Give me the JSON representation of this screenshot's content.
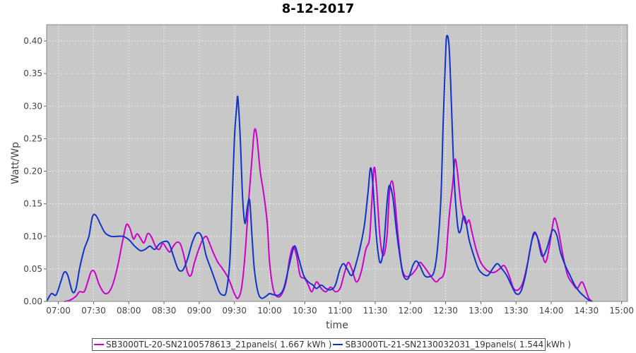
{
  "chart_data": {
    "type": "line",
    "title": "8-12-2017",
    "xlabel": "time",
    "ylabel": "Watt/Wp",
    "xlim": [
      "06:50",
      "15:05"
    ],
    "ylim": [
      0,
      0.425
    ],
    "yticks": [
      0.0,
      0.05,
      0.1,
      0.15,
      0.2,
      0.25,
      0.3,
      0.35,
      0.4
    ],
    "ytick_labels": [
      "0.00",
      "0.05",
      "0.10",
      "0.15",
      "0.20",
      "0.25",
      "0.30",
      "0.35",
      "0.40"
    ],
    "xticks": [
      "07:00",
      "07:30",
      "08:00",
      "08:30",
      "09:00",
      "09:30",
      "10:00",
      "10:30",
      "11:00",
      "11:30",
      "12:00",
      "12:30",
      "13:00",
      "13:30",
      "14:00",
      "14:30",
      "15:00"
    ],
    "grid": true,
    "legend_position": "bottom",
    "series": [
      {
        "name": "SB3000TL-20-SN2100578613_21panels( 1.667 kWh )",
        "color": "#cc00cc",
        "points": [
          [
            "07:05",
            0.0
          ],
          [
            "07:10",
            0.002
          ],
          [
            "07:15",
            0.008
          ],
          [
            "07:18",
            0.015
          ],
          [
            "07:22",
            0.015
          ],
          [
            "07:25",
            0.03
          ],
          [
            "07:28",
            0.046
          ],
          [
            "07:31",
            0.045
          ],
          [
            "07:35",
            0.025
          ],
          [
            "07:40",
            0.012
          ],
          [
            "07:45",
            0.02
          ],
          [
            "07:50",
            0.05
          ],
          [
            "07:55",
            0.095
          ],
          [
            "07:58",
            0.118
          ],
          [
            "08:01",
            0.112
          ],
          [
            "08:04",
            0.096
          ],
          [
            "08:07",
            0.104
          ],
          [
            "08:10",
            0.097
          ],
          [
            "08:13",
            0.09
          ],
          [
            "08:16",
            0.104
          ],
          [
            "08:19",
            0.1
          ],
          [
            "08:23",
            0.084
          ],
          [
            "08:26",
            0.08
          ],
          [
            "08:29",
            0.089
          ],
          [
            "08:32",
            0.082
          ],
          [
            "08:35",
            0.076
          ],
          [
            "08:38",
            0.085
          ],
          [
            "08:41",
            0.091
          ],
          [
            "08:44",
            0.088
          ],
          [
            "08:47",
            0.07
          ],
          [
            "08:50",
            0.045
          ],
          [
            "08:53",
            0.04
          ],
          [
            "08:56",
            0.06
          ],
          [
            "09:00",
            0.082
          ],
          [
            "09:03",
            0.095
          ],
          [
            "09:06",
            0.1
          ],
          [
            "09:08",
            0.093
          ],
          [
            "09:12",
            0.075
          ],
          [
            "09:16",
            0.06
          ],
          [
            "09:20",
            0.05
          ],
          [
            "09:25",
            0.035
          ],
          [
            "09:30",
            0.012
          ],
          [
            "09:33",
            0.005
          ],
          [
            "09:36",
            0.02
          ],
          [
            "09:39",
            0.07
          ],
          [
            "09:42",
            0.15
          ],
          [
            "09:45",
            0.22
          ],
          [
            "09:47",
            0.262
          ],
          [
            "09:49",
            0.255
          ],
          [
            "09:52",
            0.2
          ],
          [
            "09:55",
            0.165
          ],
          [
            "09:58",
            0.12
          ],
          [
            "10:00",
            0.06
          ],
          [
            "10:03",
            0.02
          ],
          [
            "10:06",
            0.008
          ],
          [
            "10:10",
            0.01
          ],
          [
            "10:14",
            0.03
          ],
          [
            "10:17",
            0.065
          ],
          [
            "10:20",
            0.084
          ],
          [
            "10:23",
            0.07
          ],
          [
            "10:26",
            0.04
          ],
          [
            "10:30",
            0.035
          ],
          [
            "10:33",
            0.025
          ],
          [
            "10:36",
            0.015
          ],
          [
            "10:40",
            0.03
          ],
          [
            "10:44",
            0.02
          ],
          [
            "10:48",
            0.015
          ],
          [
            "10:52",
            0.022
          ],
          [
            "10:56",
            0.015
          ],
          [
            "11:00",
            0.02
          ],
          [
            "11:04",
            0.045
          ],
          [
            "11:07",
            0.06
          ],
          [
            "11:10",
            0.05
          ],
          [
            "11:14",
            0.03
          ],
          [
            "11:18",
            0.045
          ],
          [
            "11:22",
            0.08
          ],
          [
            "11:25",
            0.095
          ],
          [
            "11:27",
            0.15
          ],
          [
            "11:29",
            0.205
          ],
          [
            "11:31",
            0.18
          ],
          [
            "11:34",
            0.1
          ],
          [
            "11:37",
            0.07
          ],
          [
            "11:40",
            0.1
          ],
          [
            "11:42",
            0.165
          ],
          [
            "11:44",
            0.185
          ],
          [
            "11:46",
            0.17
          ],
          [
            "11:49",
            0.11
          ],
          [
            "11:52",
            0.06
          ],
          [
            "11:55",
            0.04
          ],
          [
            "12:00",
            0.04
          ],
          [
            "12:05",
            0.05
          ],
          [
            "12:08",
            0.06
          ],
          [
            "12:11",
            0.055
          ],
          [
            "12:15",
            0.045
          ],
          [
            "12:19",
            0.035
          ],
          [
            "12:22",
            0.03
          ],
          [
            "12:25",
            0.035
          ],
          [
            "12:28",
            0.04
          ],
          [
            "12:30",
            0.06
          ],
          [
            "12:33",
            0.13
          ],
          [
            "12:36",
            0.18
          ],
          [
            "12:38",
            0.218
          ],
          [
            "12:40",
            0.2
          ],
          [
            "12:43",
            0.15
          ],
          [
            "12:47",
            0.12
          ],
          [
            "12:50",
            0.125
          ],
          [
            "12:52",
            0.11
          ],
          [
            "12:56",
            0.08
          ],
          [
            "13:00",
            0.06
          ],
          [
            "13:04",
            0.05
          ],
          [
            "13:08",
            0.045
          ],
          [
            "13:12",
            0.045
          ],
          [
            "13:16",
            0.05
          ],
          [
            "13:20",
            0.055
          ],
          [
            "13:24",
            0.04
          ],
          [
            "13:28",
            0.02
          ],
          [
            "13:32",
            0.018
          ],
          [
            "13:36",
            0.03
          ],
          [
            "13:40",
            0.06
          ],
          [
            "13:43",
            0.09
          ],
          [
            "13:46",
            0.104
          ],
          [
            "13:49",
            0.095
          ],
          [
            "13:52",
            0.075
          ],
          [
            "13:55",
            0.06
          ],
          [
            "13:58",
            0.08
          ],
          [
            "14:01",
            0.115
          ],
          [
            "14:03",
            0.128
          ],
          [
            "14:06",
            0.11
          ],
          [
            "14:10",
            0.07
          ],
          [
            "14:14",
            0.04
          ],
          [
            "14:18",
            0.028
          ],
          [
            "14:22",
            0.02
          ],
          [
            "14:26",
            0.03
          ],
          [
            "14:29",
            0.02
          ],
          [
            "14:32",
            0.005
          ],
          [
            "14:35",
            0.0
          ]
        ]
      },
      {
        "name": "SB3000TL-21-SN2130032031_19panels( 1.544 kWh )",
        "color": "#1133cc",
        "points": [
          [
            "06:50",
            0.0
          ],
          [
            "06:54",
            0.012
          ],
          [
            "06:58",
            0.01
          ],
          [
            "07:02",
            0.03
          ],
          [
            "07:05",
            0.045
          ],
          [
            "07:08",
            0.04
          ],
          [
            "07:12",
            0.015
          ],
          [
            "07:15",
            0.02
          ],
          [
            "07:18",
            0.05
          ],
          [
            "07:22",
            0.08
          ],
          [
            "07:26",
            0.1
          ],
          [
            "07:29",
            0.13
          ],
          [
            "07:32",
            0.132
          ],
          [
            "07:36",
            0.118
          ],
          [
            "07:40",
            0.105
          ],
          [
            "07:45",
            0.1
          ],
          [
            "07:50",
            0.1
          ],
          [
            "07:55",
            0.1
          ],
          [
            "08:00",
            0.095
          ],
          [
            "08:05",
            0.085
          ],
          [
            "08:10",
            0.078
          ],
          [
            "08:14",
            0.08
          ],
          [
            "08:18",
            0.085
          ],
          [
            "08:22",
            0.08
          ],
          [
            "08:26",
            0.088
          ],
          [
            "08:30",
            0.092
          ],
          [
            "08:34",
            0.09
          ],
          [
            "08:38",
            0.07
          ],
          [
            "08:42",
            0.05
          ],
          [
            "08:46",
            0.048
          ],
          [
            "08:50",
            0.065
          ],
          [
            "08:54",
            0.09
          ],
          [
            "08:58",
            0.105
          ],
          [
            "09:02",
            0.1
          ],
          [
            "09:06",
            0.07
          ],
          [
            "09:10",
            0.05
          ],
          [
            "09:14",
            0.03
          ],
          [
            "09:17",
            0.015
          ],
          [
            "09:20",
            0.01
          ],
          [
            "09:23",
            0.015
          ],
          [
            "09:26",
            0.06
          ],
          [
            "09:28",
            0.15
          ],
          [
            "09:30",
            0.25
          ],
          [
            "09:32",
            0.3
          ],
          [
            "09:33",
            0.312
          ],
          [
            "09:35",
            0.25
          ],
          [
            "09:37",
            0.16
          ],
          [
            "09:39",
            0.12
          ],
          [
            "09:41",
            0.145
          ],
          [
            "09:43",
            0.155
          ],
          [
            "09:45",
            0.1
          ],
          [
            "09:47",
            0.05
          ],
          [
            "09:50",
            0.015
          ],
          [
            "09:53",
            0.005
          ],
          [
            "09:57",
            0.008
          ],
          [
            "10:00",
            0.012
          ],
          [
            "10:04",
            0.01
          ],
          [
            "10:08",
            0.01
          ],
          [
            "10:12",
            0.02
          ],
          [
            "10:16",
            0.05
          ],
          [
            "10:20",
            0.08
          ],
          [
            "10:22",
            0.084
          ],
          [
            "10:25",
            0.065
          ],
          [
            "10:29",
            0.04
          ],
          [
            "10:33",
            0.03
          ],
          [
            "10:37",
            0.025
          ],
          [
            "10:40",
            0.02
          ],
          [
            "10:44",
            0.025
          ],
          [
            "10:48",
            0.02
          ],
          [
            "10:52",
            0.018
          ],
          [
            "10:56",
            0.025
          ],
          [
            "11:00",
            0.05
          ],
          [
            "11:03",
            0.058
          ],
          [
            "11:06",
            0.05
          ],
          [
            "11:10",
            0.04
          ],
          [
            "11:14",
            0.06
          ],
          [
            "11:18",
            0.09
          ],
          [
            "11:21",
            0.12
          ],
          [
            "11:24",
            0.17
          ],
          [
            "11:26",
            0.205
          ],
          [
            "11:28",
            0.18
          ],
          [
            "11:31",
            0.1
          ],
          [
            "11:34",
            0.06
          ],
          [
            "11:37",
            0.08
          ],
          [
            "11:40",
            0.15
          ],
          [
            "11:42",
            0.178
          ],
          [
            "11:45",
            0.16
          ],
          [
            "11:48",
            0.11
          ],
          [
            "11:51",
            0.07
          ],
          [
            "11:54",
            0.04
          ],
          [
            "11:58",
            0.035
          ],
          [
            "12:02",
            0.055
          ],
          [
            "12:05",
            0.062
          ],
          [
            "12:08",
            0.055
          ],
          [
            "12:12",
            0.04
          ],
          [
            "12:16",
            0.038
          ],
          [
            "12:20",
            0.045
          ],
          [
            "12:23",
            0.08
          ],
          [
            "12:26",
            0.16
          ],
          [
            "12:28",
            0.28
          ],
          [
            "12:30",
            0.38
          ],
          [
            "12:31",
            0.408
          ],
          [
            "12:33",
            0.39
          ],
          [
            "12:35",
            0.3
          ],
          [
            "12:37",
            0.2
          ],
          [
            "12:39",
            0.14
          ],
          [
            "12:41",
            0.108
          ],
          [
            "12:43",
            0.11
          ],
          [
            "12:45",
            0.13
          ],
          [
            "12:47",
            0.125
          ],
          [
            "12:50",
            0.095
          ],
          [
            "12:54",
            0.07
          ],
          [
            "12:58",
            0.05
          ],
          [
            "13:02",
            0.042
          ],
          [
            "13:06",
            0.04
          ],
          [
            "13:10",
            0.05
          ],
          [
            "13:14",
            0.058
          ],
          [
            "13:18",
            0.05
          ],
          [
            "13:22",
            0.04
          ],
          [
            "13:26",
            0.025
          ],
          [
            "13:30",
            0.012
          ],
          [
            "13:34",
            0.015
          ],
          [
            "13:38",
            0.04
          ],
          [
            "13:42",
            0.08
          ],
          [
            "13:45",
            0.105
          ],
          [
            "13:48",
            0.1
          ],
          [
            "13:52",
            0.07
          ],
          [
            "13:56",
            0.08
          ],
          [
            "14:00",
            0.105
          ],
          [
            "14:02",
            0.11
          ],
          [
            "14:05",
            0.1
          ],
          [
            "14:08",
            0.075
          ],
          [
            "14:12",
            0.055
          ],
          [
            "14:16",
            0.04
          ],
          [
            "14:20",
            0.025
          ],
          [
            "14:24",
            0.015
          ],
          [
            "14:28",
            0.008
          ],
          [
            "14:32",
            0.002
          ],
          [
            "14:35",
            0.0
          ]
        ]
      }
    ]
  }
}
